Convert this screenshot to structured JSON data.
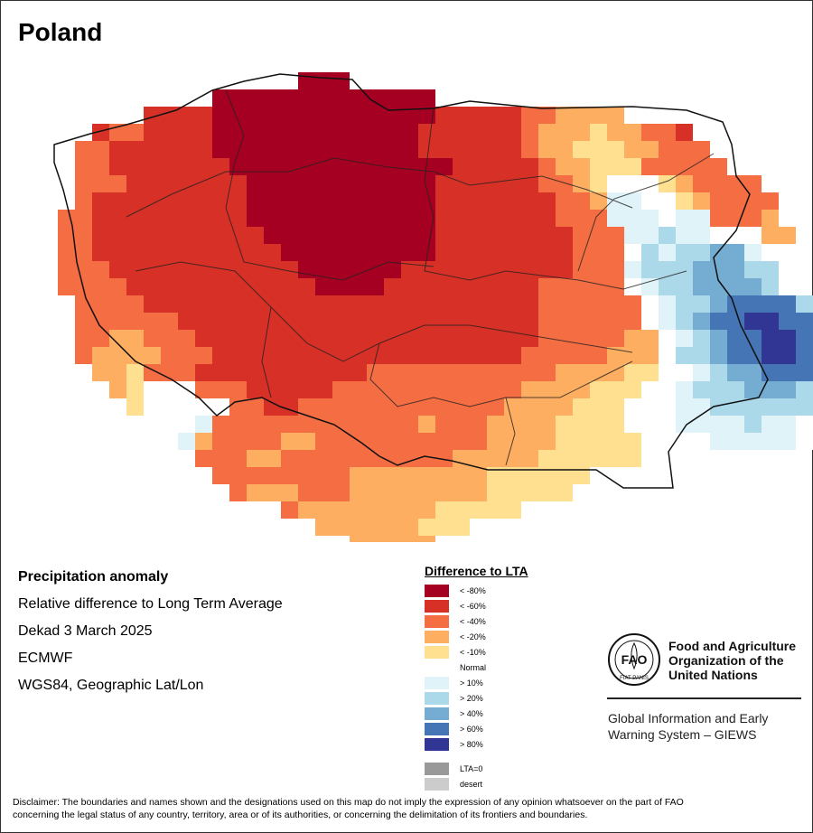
{
  "map": {
    "title": "Poland",
    "grid_cell_colors": {
      "0": "#a50021",
      "1": "#d73027",
      "2": "#f46d43",
      "3": "#fdae61",
      "4": "#fee090",
      "5": "#ffffff",
      "6": "#e0f3f8",
      "7": "#abd9e9",
      "8": "#74add1",
      "9": "#4575b4",
      "A": "#313695"
    },
    "grid": [
      "...............000..............................",
      "..........0000000000000.........................",
      "......1111000000000000011111223333...............",
      "...12211110000000000001111112333433221...........",
      "..2211111100000000000011111123344433222..........",
      "..22111111100000000000001111123344422222.........",
      "..2221111111000000000001111112234555432222.......",
      "..21111111110000000000011111112236655432222......",
      ".221111111110000000000011111112226665662223......",
      ".2211111111110000000000111111112226676655533.....",
      ".2211111111111000000000111111112225767788655.....",
      ".2221111111111100000011111111112226777888775.....",
      ".222211111111111000011111111122222567788887......",
      "..2222111111111111111111111112222225677899997.....",
      "..222222111111111111111111111222222567899AA99.....",
      "..2233222111111111111111111112222233567899AA98.....",
      "..2333322211111111111111111122222333577899AA987....",
      "...33422211111111112222222222233334455678899988....",
      "....3455522211111222222222223333444556777888777....",
      ".....455555221122222222222233334445556677777766....",
      "......55562222222222223222333344445556666766565....",
      ".......5632222332222222222333344444555566666555....",
      ".........22233222222222233333444444555555555.......",
      "..........222222223333333344444455............",
      "...........23332223333333344444555.............",
      "..............233333333444445555..............",
      "................33333344455...................",
      "..................33333......................."
    ]
  },
  "info": {
    "line1": "Precipitation anomaly",
    "line2": "Relative difference to Long Term Average",
    "line3": "Dekad 3 March 2025",
    "line4": "ECMWF",
    "line5": "WGS84, Geographic Lat/Lon"
  },
  "legend": {
    "title": "Difference to LTA",
    "items": [
      {
        "label": "< -80%",
        "color": "#a50021"
      },
      {
        "label": "< -60%",
        "color": "#d73027"
      },
      {
        "label": "< -40%",
        "color": "#f46d43"
      },
      {
        "label": "< -20%",
        "color": "#fdae61"
      },
      {
        "label": "< -10%",
        "color": "#fee090"
      },
      {
        "label": "Normal",
        "color": "#ffffff"
      },
      {
        "label": "> 10%",
        "color": "#e0f3f8"
      },
      {
        "label": "> 20%",
        "color": "#abd9e9"
      },
      {
        "label": "> 40%",
        "color": "#74add1"
      },
      {
        "label": "> 60%",
        "color": "#4575b4"
      },
      {
        "label": "> 80%",
        "color": "#313695"
      }
    ],
    "extra": [
      {
        "label": "LTA=0",
        "color": "#999999"
      },
      {
        "label": "desert",
        "color": "#cccccc"
      }
    ]
  },
  "branding": {
    "org_line1": "Food and Agriculture",
    "org_line2": "Organization of the",
    "org_line3": "United Nations",
    "system_line1": "Global Information and Early",
    "system_line2": "Warning System – GIEWS",
    "logo_text": "FAO",
    "logo_ring_text": "FIAT PANIS"
  },
  "disclaimer": {
    "line1": "Disclaimer: The boundaries and names shown and the designations used on this map do not imply the expression of any opinion whatsoever on the part of FAO",
    "line2": "concerning the legal status of any country, territory, area or of its authorities, or concerning the delimitation of its frontiers and boundaries."
  }
}
